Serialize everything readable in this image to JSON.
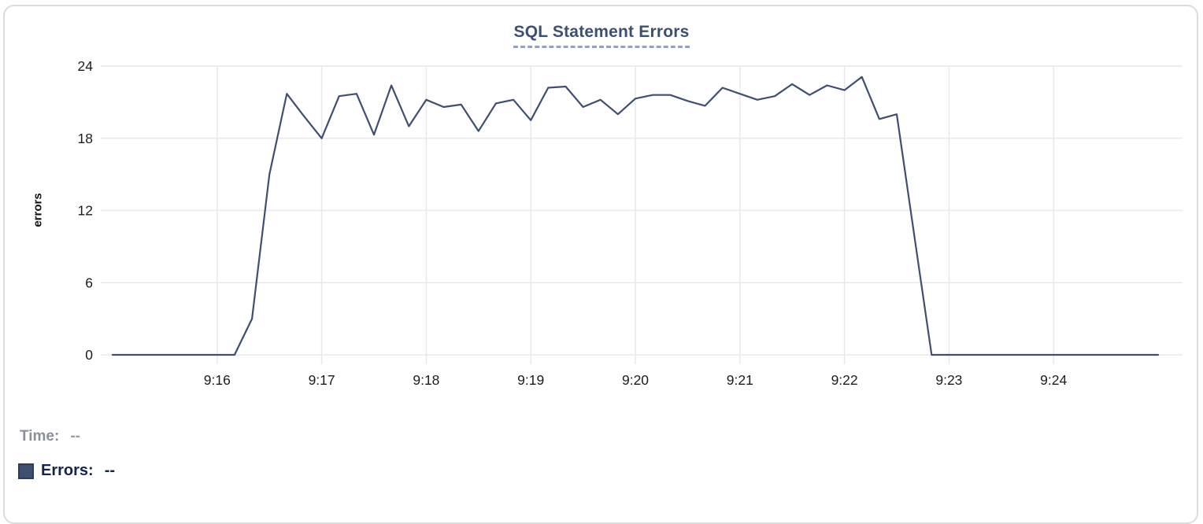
{
  "widget_title": "SQL Statement Errors",
  "colors": {
    "series_line": "#3f4f70",
    "marker_border": "#2c3c59",
    "title_text": "#3c5170",
    "title_underline": "#93a2be",
    "grid": "#e9e9e9",
    "tick_text": "#1c1c1c",
    "time_legend_text": "#8a9099",
    "errors_legend_text": "#152350",
    "card_border": "#dcdcdc"
  },
  "legend": {
    "time_label": "Time:",
    "time_value": "--",
    "errors_label": "Errors:",
    "errors_value": "--"
  },
  "chart_data": {
    "type": "line",
    "title": "SQL Statement Errors",
    "xlabel": "",
    "ylabel": "errors",
    "x_range": [
      "9:15:00",
      "9:25:00"
    ],
    "ylim": [
      0,
      24
    ],
    "y_ticks": [
      0,
      6,
      12,
      18,
      24
    ],
    "x_ticks": [
      "9:16",
      "9:17",
      "9:18",
      "9:19",
      "9:20",
      "9:21",
      "9:22",
      "9:23",
      "9:24"
    ],
    "grid": true,
    "legend_position": "bottom-left",
    "series": [
      {
        "name": "Errors",
        "color": "#3f4f70",
        "times": [
          "9:15:00",
          "9:15:10",
          "9:15:20",
          "9:15:30",
          "9:15:40",
          "9:15:50",
          "9:16:00",
          "9:16:10",
          "9:16:20",
          "9:16:30",
          "9:16:40",
          "9:16:50",
          "9:17:00",
          "9:17:10",
          "9:17:20",
          "9:17:30",
          "9:17:40",
          "9:17:50",
          "9:18:00",
          "9:18:10",
          "9:18:20",
          "9:18:30",
          "9:18:40",
          "9:18:50",
          "9:19:00",
          "9:19:10",
          "9:19:20",
          "9:19:30",
          "9:19:40",
          "9:19:50",
          "9:20:00",
          "9:20:10",
          "9:20:20",
          "9:20:30",
          "9:20:40",
          "9:20:50",
          "9:21:00",
          "9:21:10",
          "9:21:20",
          "9:21:30",
          "9:21:40",
          "9:21:50",
          "9:22:00",
          "9:22:10",
          "9:22:20",
          "9:22:30",
          "9:22:40",
          "9:22:50",
          "9:23:00",
          "9:23:10",
          "9:23:20",
          "9:23:30",
          "9:23:40",
          "9:23:50",
          "9:24:00",
          "9:24:10",
          "9:24:20",
          "9:24:30",
          "9:24:40",
          "9:24:50",
          "9:25:00"
        ],
        "values": [
          0,
          0,
          0,
          0,
          0,
          0,
          0,
          0,
          3,
          15,
          21.7,
          19.8,
          18,
          21.5,
          21.7,
          18.3,
          22.4,
          19,
          21.2,
          20.6,
          20.8,
          18.6,
          20.9,
          21.2,
          19.5,
          22.2,
          22.3,
          20.6,
          21.2,
          20,
          21.3,
          21.6,
          21.6,
          21.1,
          20.7,
          22.2,
          21.7,
          21.2,
          21.5,
          22.5,
          21.6,
          22.4,
          22,
          23.1,
          19.6,
          20,
          10,
          0,
          0,
          0,
          0,
          0,
          0,
          0,
          0,
          0,
          0,
          0,
          0,
          0,
          0
        ]
      }
    ]
  }
}
